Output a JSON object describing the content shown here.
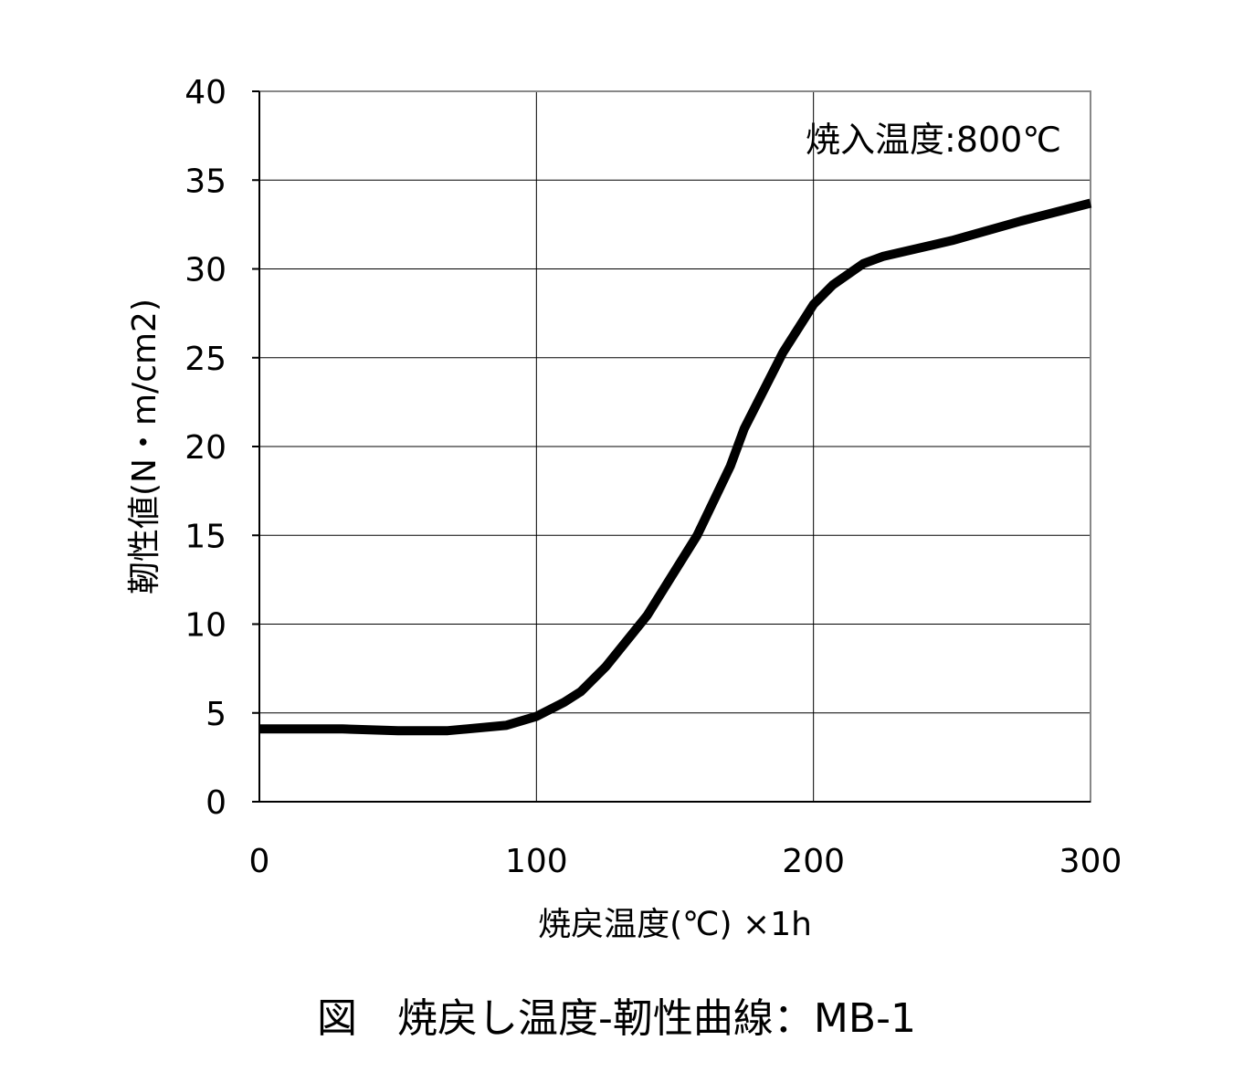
{
  "chart_data": {
    "type": "line",
    "xlabel": "焼戻温度(℃) ×1h",
    "ylabel": "靭性値(N・m/cm2)",
    "annotation": "焼入温度:800℃",
    "caption": "図　焼戻し温度-靭性曲線：MB-1",
    "xlim": [
      0,
      300
    ],
    "ylim": [
      0,
      40
    ],
    "x_ticks": [
      0,
      100,
      200,
      300
    ],
    "y_ticks": [
      0,
      5,
      10,
      15,
      20,
      25,
      30,
      35,
      40
    ],
    "grid": true,
    "line_color": "#000000",
    "series": [
      {
        "x": [
          0,
          30,
          50,
          68,
          89,
          100,
          110,
          116,
          125,
          140,
          158,
          170,
          175,
          189,
          200,
          207,
          218,
          225,
          250,
          275,
          300
        ],
        "values": [
          4.1,
          4.1,
          4.0,
          4.0,
          4.3,
          4.8,
          5.6,
          6.2,
          7.6,
          10.5,
          15.0,
          18.9,
          21.0,
          25.3,
          28.0,
          29.1,
          30.3,
          30.7,
          31.6,
          32.7,
          33.7
        ]
      }
    ]
  }
}
